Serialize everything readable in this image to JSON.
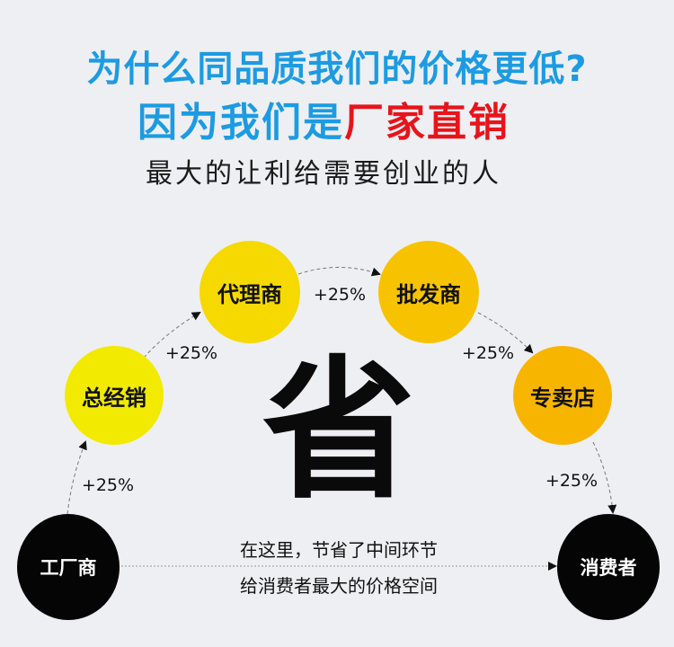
{
  "headline": {
    "line1": "为什么同品质我们的价格更低?",
    "line2_prefix": "因为我们是",
    "line2_highlight": "厂家直销",
    "line3": "最大的让利给需要创业的人"
  },
  "colors": {
    "blue": "#1c9be2",
    "red": "#e8141b",
    "yellow": "#f3e800",
    "orange": "#f8b300",
    "black": "#050505"
  },
  "nodes": [
    "工厂商",
    "总经销",
    "代理商",
    "批发商",
    "专卖店",
    "消费者"
  ],
  "markups": [
    "+25%",
    "+25%",
    "+25%",
    "+25%",
    "+25%"
  ],
  "center_char": "省",
  "bottom_text": {
    "line1": "在这里，节省了中间环节",
    "line2": "给消费者最大的价格空间"
  }
}
